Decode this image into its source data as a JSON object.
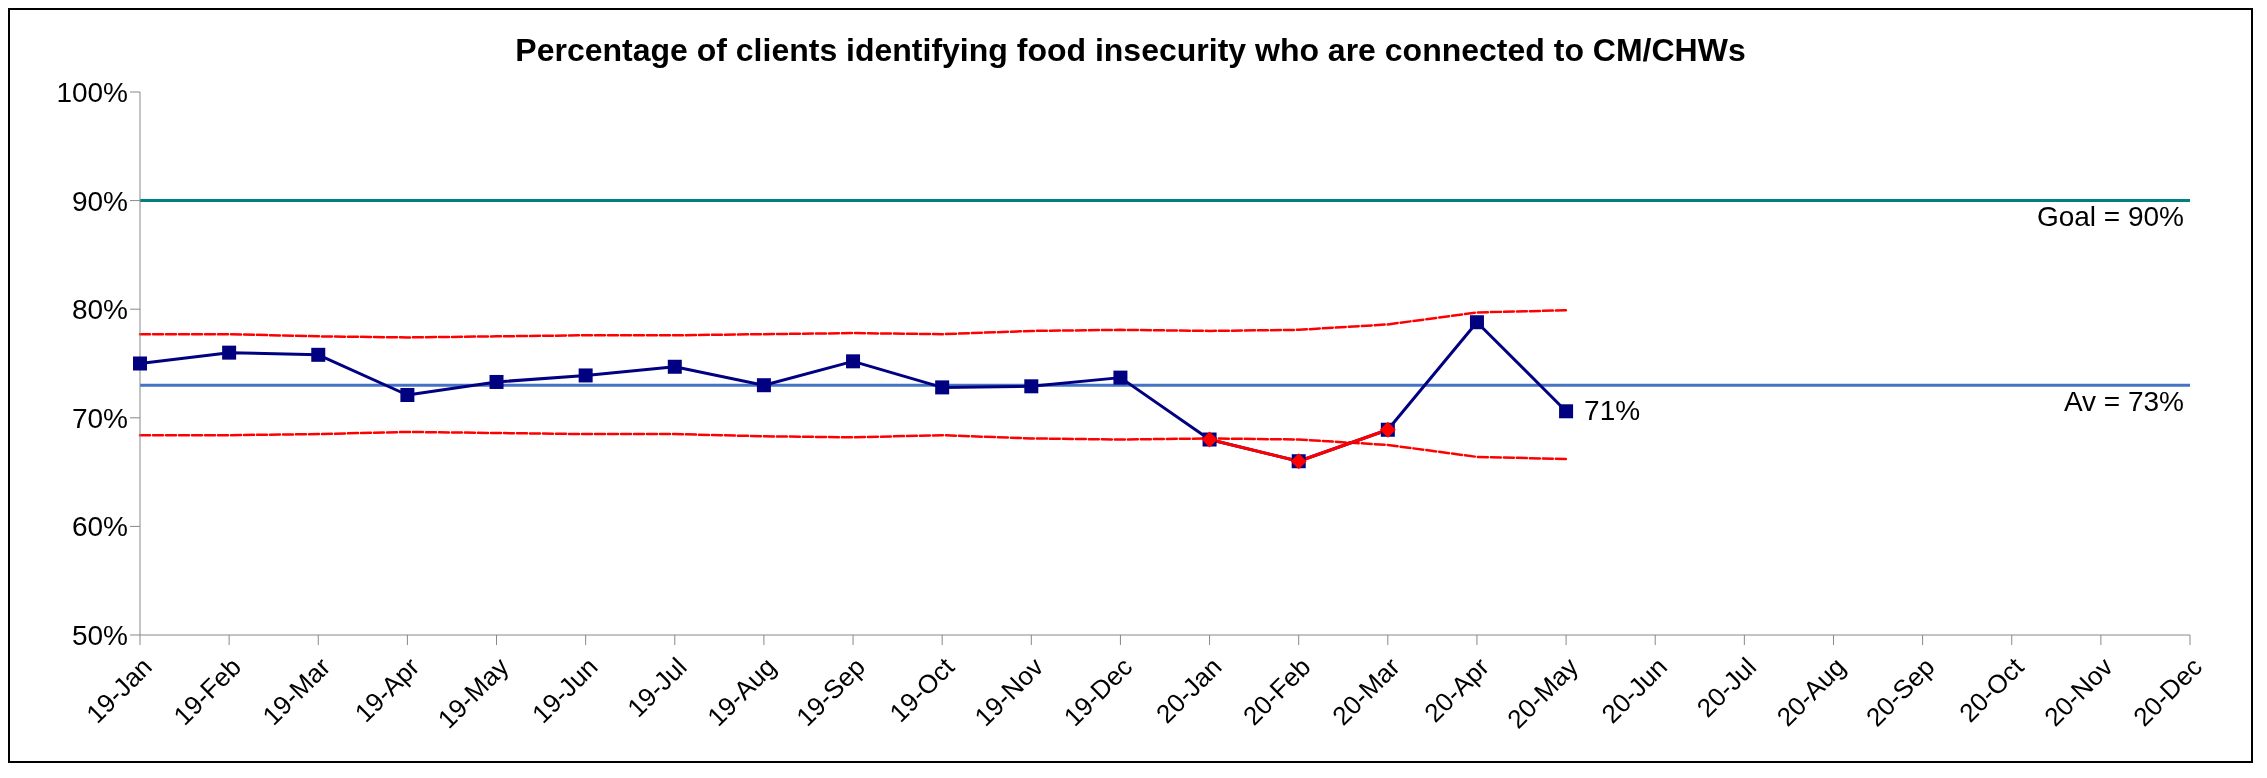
{
  "chart_data": {
    "type": "line",
    "title": "Percentage of clients identifying food insecurity who are connected to CM/CHWs",
    "categories": [
      "19-Jan",
      "19-Feb",
      "19-Mar",
      "19-Apr",
      "19-May",
      "19-Jun",
      "19-Jul",
      "19-Aug",
      "19-Sep",
      "19-Oct",
      "19-Nov",
      "19-Dec",
      "20-Jan",
      "20-Feb",
      "20-Mar",
      "20-Apr",
      "20-May",
      "20-Jun",
      "20-Jul",
      "20-Aug",
      "20-Sep",
      "20-Oct",
      "20-Nov",
      "20-Dec"
    ],
    "series": [
      {
        "color": "#ff0000",
        "line_style": "dashed",
        "marker": "none",
        "values": [
          77.7,
          77.7,
          77.5,
          77.4,
          77.5,
          77.6,
          77.6,
          77.7,
          77.8,
          77.7,
          78.0,
          78.1,
          78.0,
          78.1,
          78.6,
          79.7,
          79.9,
          null,
          null,
          null,
          null,
          null,
          null,
          null
        ]
      },
      {
        "color": "#ff0000",
        "line_style": "dashed",
        "marker": "none",
        "values": [
          68.4,
          68.4,
          68.5,
          68.7,
          68.6,
          68.5,
          68.5,
          68.3,
          68.2,
          68.4,
          68.1,
          68.0,
          68.1,
          68.0,
          67.5,
          66.4,
          66.2,
          null,
          null,
          null,
          null,
          null,
          null,
          null
        ]
      },
      {
        "color": "#000080",
        "line_style": "solid",
        "marker": "square",
        "values": [
          75.0,
          76.0,
          75.8,
          72.1,
          73.3,
          73.9,
          74.7,
          73.0,
          75.2,
          72.8,
          72.9,
          73.7,
          68.0,
          66.0,
          68.9,
          78.8,
          70.6,
          null,
          null,
          null,
          null,
          null,
          null,
          null
        ],
        "value_labels": [
          null,
          null,
          null,
          null,
          null,
          null,
          null,
          null,
          null,
          null,
          null,
          null,
          null,
          null,
          null,
          null,
          "71%",
          null,
          null,
          null,
          null,
          null,
          null,
          null
        ]
      },
      {
        "color": "#ff0000",
        "line_style": "solid",
        "marker": "diamond",
        "values": [
          null,
          null,
          null,
          null,
          null,
          null,
          null,
          null,
          null,
          null,
          null,
          null,
          68.0,
          66.0,
          68.9,
          null,
          null,
          null,
          null,
          null,
          null,
          null,
          null,
          null
        ]
      }
    ],
    "ylim": [
      50,
      100
    ],
    "yticks": [
      {
        "value": 50,
        "label": "50%"
      },
      {
        "value": 60,
        "label": "60%"
      },
      {
        "value": 70,
        "label": "70%"
      },
      {
        "value": 80,
        "label": "80%"
      },
      {
        "value": 90,
        "label": "90%"
      },
      {
        "value": 100,
        "label": "100%"
      }
    ],
    "ref_lines": [
      {
        "axis": "y",
        "value": 90,
        "label": "Goal = 90%",
        "color": "#008080"
      },
      {
        "axis": "y",
        "value": 73,
        "label": "Av = 73%",
        "color": "#4472c4"
      }
    ],
    "grid": false,
    "legend": false
  }
}
